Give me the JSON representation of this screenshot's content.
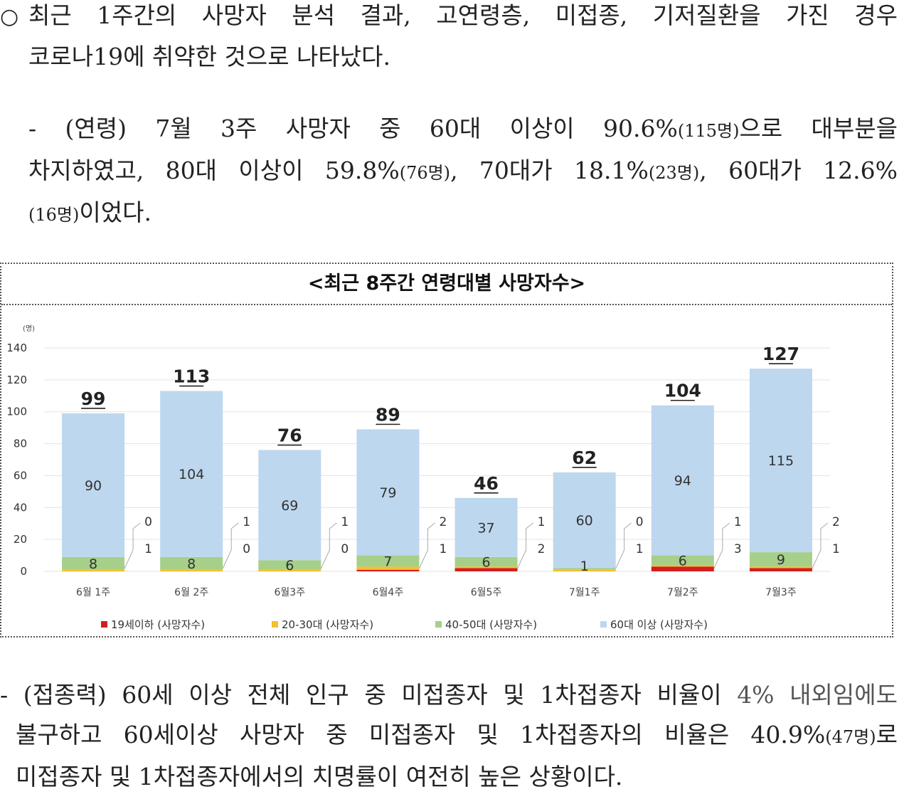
{
  "paragraph1": {
    "bullet": "○",
    "line1": "최근 1주간의 사망자 분석 결과, 고연령층, 미접종, 기저질환을 가진 경우",
    "line2": "코로나19에 취약한 것으로 나타났다."
  },
  "paragraph2": {
    "line1_text": "- (연령) 7월 3주 사망자 중 60대 이상이 90.6%",
    "line1_small": "(115명)",
    "line1_tail": "으로 대부분을",
    "line2_a": "차지하였고, 80대 이상이 59.8%",
    "line2_a_small": "(76명)",
    "line2_b": ", 70대가 18.1%",
    "line2_b_small": "(23명)",
    "line2_c": ", 60대가 12.6%",
    "line3_small": "(16명)",
    "line3_tail": "이었다."
  },
  "chart_data": {
    "type": "bar",
    "stacked": true,
    "title": "<최근 8주간 연령대별 사망자수>",
    "y_unit": "(명)",
    "ylim": [
      0,
      140
    ],
    "yticks": [
      0,
      20,
      40,
      60,
      80,
      100,
      120,
      140
    ],
    "categories": [
      "6월 1주",
      "6월 2주",
      "6월3주",
      "6월4주",
      "6월5주",
      "7월1주",
      "7월2주",
      "7월3주"
    ],
    "series": [
      {
        "name": "19세이하 (사망자수)",
        "color": "#d21f1f",
        "values": [
          0,
          0,
          0,
          1,
          2,
          0,
          3,
          2
        ]
      },
      {
        "name": "20-30대 (사망자수)",
        "color": "#f2c12e",
        "values": [
          1,
          1,
          1,
          2,
          1,
          1,
          1,
          1
        ]
      },
      {
        "name": "40-50대 (사망자수)",
        "color": "#a6cf8a",
        "values": [
          8,
          8,
          6,
          7,
          6,
          1,
          6,
          9
        ]
      },
      {
        "name": "60대 이상 (사망자수)",
        "color": "#bdd7ee",
        "values": [
          90,
          104,
          69,
          79,
          37,
          60,
          94,
          115
        ]
      }
    ],
    "totals": [
      99,
      113,
      76,
      89,
      46,
      62,
      104,
      127
    ],
    "side_labels_upper": [
      "0",
      "1",
      "1",
      "2",
      "1",
      "0",
      "1",
      "2"
    ],
    "side_labels_lower": [
      "1",
      "0",
      "0",
      "1",
      "2",
      "1",
      "3",
      "1"
    ]
  },
  "paragraph3": {
    "line1_a": "- (접종력) 60세 이상 전체 인구 중 미접종자 및 1차접종자 비율이 ",
    "line1_b": "4% 내외임에도",
    "line2_a": "불구하고  60세이상 사망자 중 미접종자 및 1차접종자의 비율은 40.9%",
    "line2_small": "(47명)",
    "line2_tail": "로",
    "line3": "미접종자 및 1차접종자에서의 치명률이 여전히 높은 상황이다."
  }
}
